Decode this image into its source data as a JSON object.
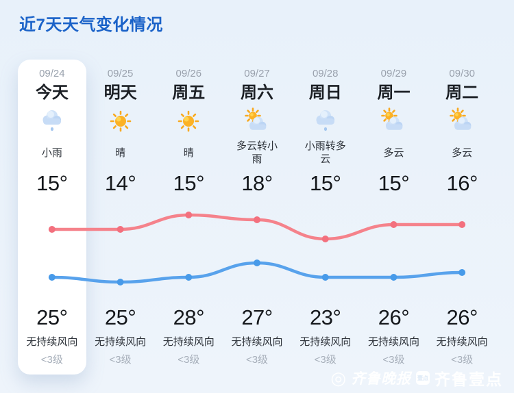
{
  "page": {
    "title": "近7天天气变化情况"
  },
  "forecast": {
    "columns": [
      {
        "date": "09/24",
        "day": "今天",
        "icon": "light-rain-icon",
        "glyph": "rain",
        "desc": "小雨",
        "temp_top": "15°",
        "temp_bottom": "25°",
        "wind": "无持续风向",
        "level": "<3级",
        "today": true
      },
      {
        "date": "09/25",
        "day": "明天",
        "icon": "sunny-icon",
        "glyph": "sun",
        "desc": "晴",
        "temp_top": "14°",
        "temp_bottom": "25°",
        "wind": "无持续风向",
        "level": "<3级",
        "today": false
      },
      {
        "date": "09/26",
        "day": "周五",
        "icon": "sunny-icon",
        "glyph": "sun",
        "desc": "晴",
        "temp_top": "15°",
        "temp_bottom": "28°",
        "wind": "无持续风向",
        "level": "<3级",
        "today": false
      },
      {
        "date": "09/27",
        "day": "周六",
        "icon": "cloudy-to-rain-icon",
        "glyph": "sun-cloud",
        "desc": "多云转小雨",
        "temp_top": "18°",
        "temp_bottom": "27°",
        "wind": "无持续风向",
        "level": "<3级",
        "today": false
      },
      {
        "date": "09/28",
        "day": "周日",
        "icon": "rain-to-cloudy-icon",
        "glyph": "rain",
        "desc": "小雨转多云",
        "temp_top": "15°",
        "temp_bottom": "23°",
        "wind": "无持续风向",
        "level": "<3级",
        "today": false
      },
      {
        "date": "09/29",
        "day": "周一",
        "icon": "cloudy-icon",
        "glyph": "sun-cloud",
        "desc": "多云",
        "temp_top": "15°",
        "temp_bottom": "26°",
        "wind": "无持续风向",
        "level": "<3级",
        "today": false
      },
      {
        "date": "09/30",
        "day": "周二",
        "icon": "cloudy-icon",
        "glyph": "sun-cloud",
        "desc": "多云",
        "temp_top": "16°",
        "temp_bottom": "26°",
        "wind": "无持续风向",
        "level": "<3级",
        "today": false
      }
    ]
  },
  "chart_data": {
    "type": "line",
    "x": [
      "09/24",
      "09/25",
      "09/26",
      "09/27",
      "09/28",
      "09/29",
      "09/30"
    ],
    "series": [
      {
        "name": "day-high-temp",
        "values": [
          25,
          25,
          28,
          27,
          23,
          26,
          26
        ],
        "color": "#f5828b",
        "dot_color": "#f3707e"
      },
      {
        "name": "night-low-temp",
        "values": [
          15,
          14,
          15,
          18,
          15,
          15,
          16
        ],
        "color": "#58a2ec",
        "dot_color": "#479ae9"
      }
    ],
    "unit": "°C",
    "ylim": [
      13,
      29
    ],
    "grid": false,
    "legend": false
  },
  "watermark": {
    "paper": "齐鲁晚报",
    "badge": "壹点",
    "app": "齐鲁壹点"
  },
  "colors": {
    "title": "#1a62c8",
    "background_top": "#e8f1fa",
    "background_bottom": "#eef4fb",
    "today_card": "#ffffff"
  }
}
